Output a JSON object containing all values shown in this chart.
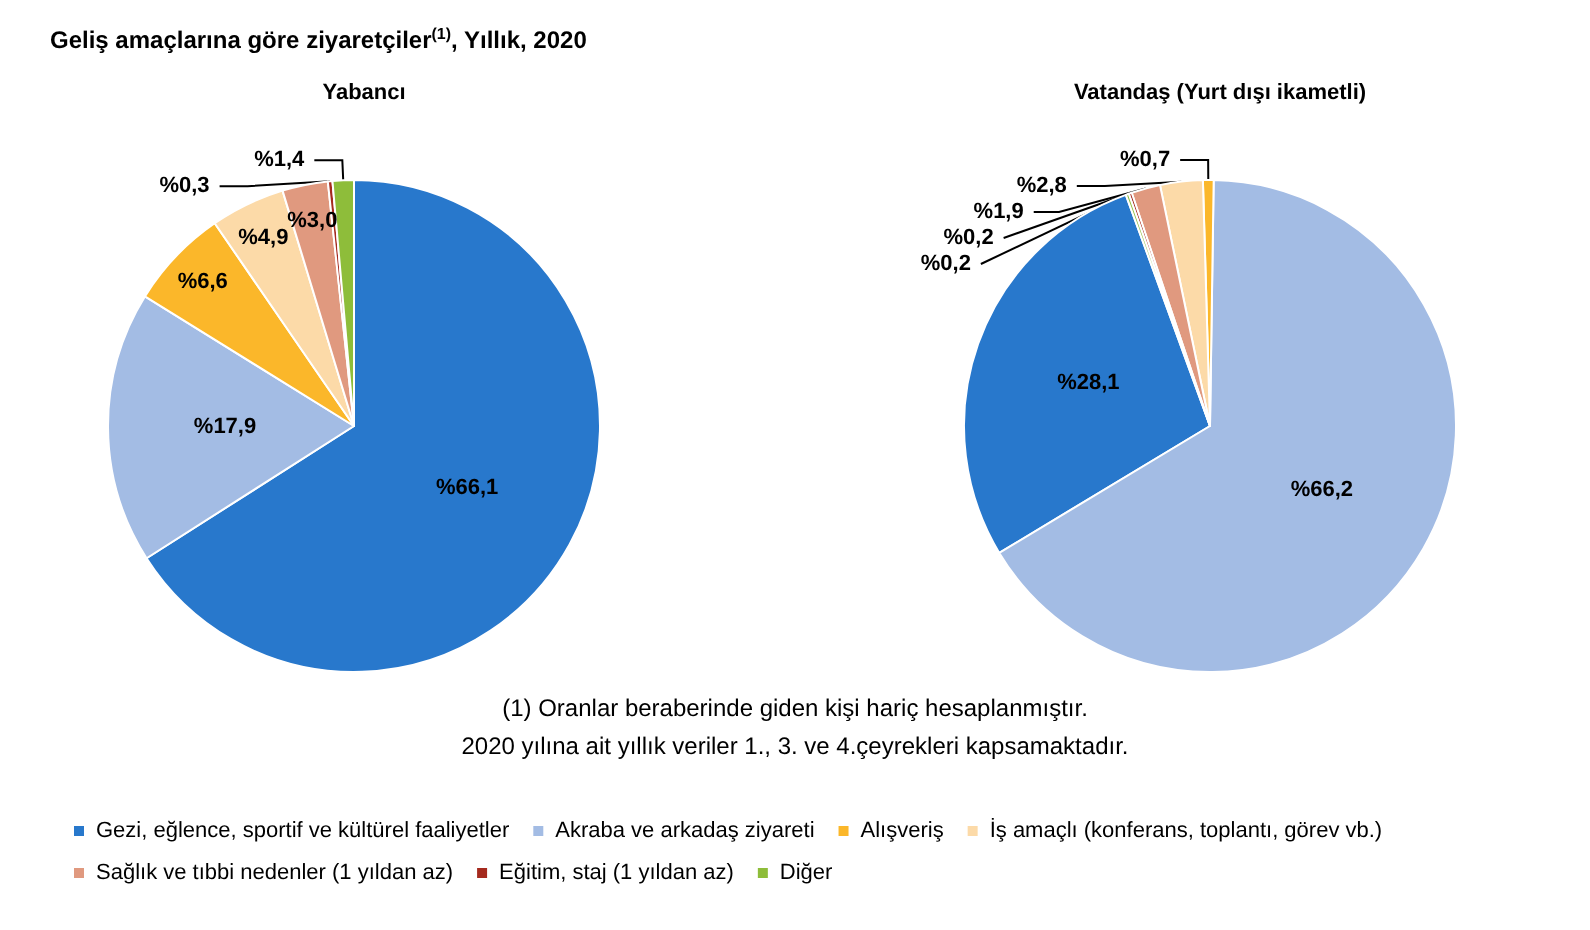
{
  "chart_data": {
    "type": "pie",
    "title": "Geliş amaçlarına göre ziyaretçiler$^{(1)}$, Yıllık, 2020",
    "categories": [
      "Gezi, eğlence, sportif ve kültürel faaliyetler",
      "Akraba ve arkadaş ziyareti",
      "Alışveriş",
      "İş amaçlı (konferans, toplantı, görev vb.)",
      "Sağlık ve tıbbi nedenler (1 yıldan az)",
      "Eğitim, staj (1 yıldan az)",
      "Diğer"
    ],
    "colors": [
      "#2878cc",
      "#a3bce4",
      "#fbb72a",
      "#fcdaa8",
      "#e0997f",
      "#a52a1e",
      "#8ebd3a"
    ],
    "series": [
      {
        "name": "Yabancı",
        "values": [
          66.1,
          17.9,
          6.6,
          4.9,
          3.0,
          0.3,
          1.4
        ],
        "value_labels": [
          "%66,1",
          "%17,9",
          "%6,6",
          "%4,9",
          "%3,0",
          "%0,3",
          "%1,4"
        ]
      },
      {
        "name": "Vatandaş (Yurt dışı ikametli)",
        "values": [
          28.1,
          66.2,
          0.7,
          2.8,
          1.9,
          0.2,
          0.2
        ],
        "value_labels": [
          "%28,1",
          "%66,2",
          "%0,7",
          "%2,8",
          "%1,9",
          "%0,2",
          "%0,2"
        ]
      }
    ],
    "legend": "bottom",
    "annotations": [
      "(1) Oranlar beraberinde giden kişi hariç hesaplanmıştır.",
      "2020 yılına ait yıllık veriler 1., 3. ve 4.çeyrekleri kapsamaktadır."
    ]
  }
}
